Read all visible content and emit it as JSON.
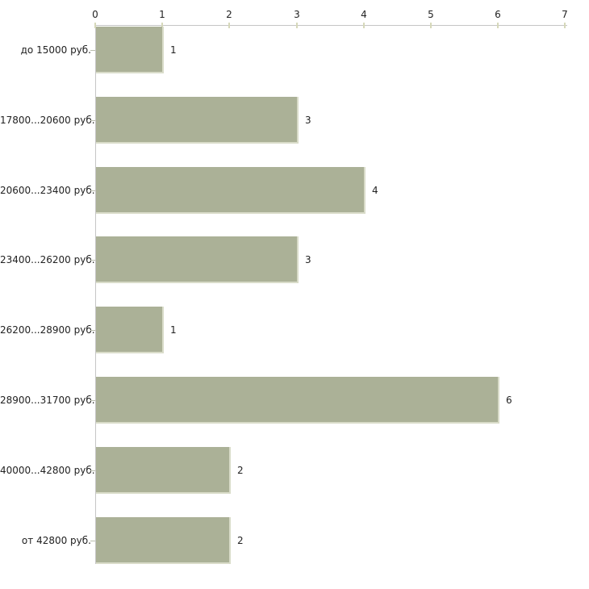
{
  "chart_data": {
    "type": "bar",
    "orientation": "horizontal",
    "title": "",
    "xlabel": "",
    "ylabel": "",
    "categories": [
      "до 15000 руб.",
      "17800...20600 руб.",
      "20600...23400 руб.",
      "23400...26200 руб.",
      "26200...28900 руб.",
      "28900...31700 руб.",
      "40000...42800 руб.",
      "от 42800 руб."
    ],
    "values": [
      1,
      3,
      4,
      3,
      1,
      6,
      2,
      2
    ],
    "value_labels": [
      "1",
      "3",
      "4",
      "3",
      "1",
      "6",
      "2",
      "2"
    ],
    "x_ticks": [
      "0",
      "1",
      "2",
      "3",
      "4",
      "5",
      "6",
      "7"
    ],
    "xlim": [
      0,
      7
    ],
    "axis_position": "top",
    "grid": false,
    "legend": false,
    "colors": {
      "bar_fill": "#abb197",
      "bar_edge": "#d9dcc9",
      "axis_line": "#c6c6c6",
      "axis_tick": "#d6d8ba",
      "category_tick": "#b9bdad",
      "text": "#222222",
      "background": "#ffffff"
    }
  }
}
